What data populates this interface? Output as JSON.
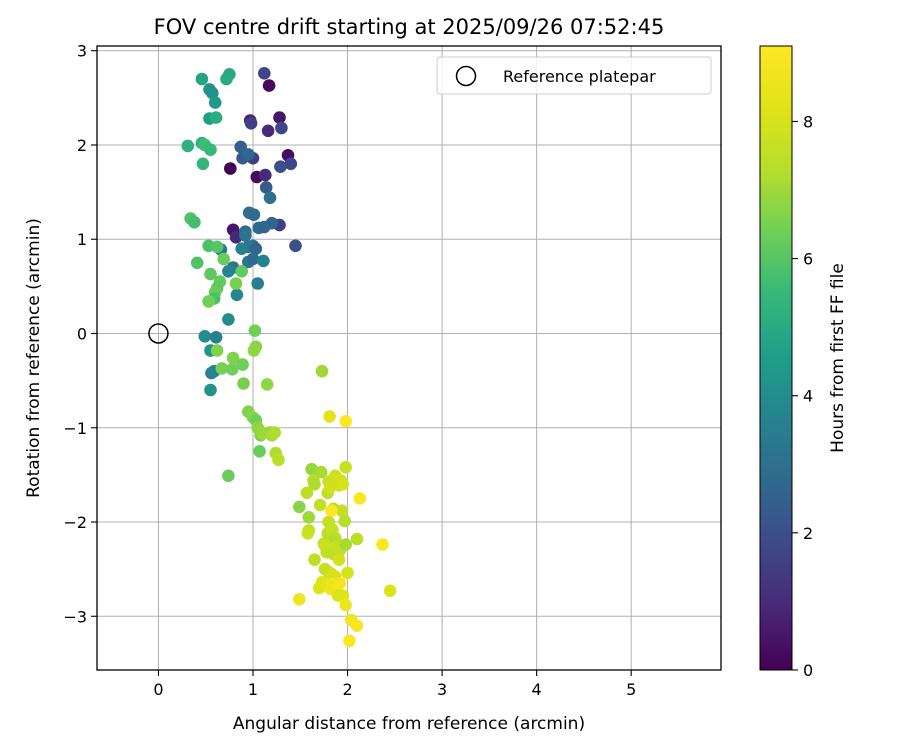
{
  "chart_data": {
    "type": "scatter",
    "title": "FOV centre drift starting at 2025/09/26 07:52:45",
    "xlabel": "Angular distance from reference (arcmin)",
    "ylabel": "Rotation from reference (arcmin)",
    "xlim": [
      -0.65,
      5.95
    ],
    "ylim": [
      -3.57,
      3.05
    ],
    "xticks": [
      0,
      1,
      2,
      3,
      4,
      5
    ],
    "yticks": [
      -3,
      -2,
      -1,
      0,
      1,
      2,
      3
    ],
    "xtick_labels": [
      "0",
      "1",
      "2",
      "3",
      "4",
      "5"
    ],
    "ytick_labels": [
      "−3",
      "−2",
      "−1",
      "0",
      "1",
      "2",
      "3"
    ],
    "grid": true,
    "legend": {
      "position": "top-right",
      "entries": [
        "Reference platepar"
      ]
    },
    "reference_point": {
      "label": "Reference platepar",
      "x": 0,
      "y": 0
    },
    "colorbar": {
      "label": "Hours from first FF file",
      "colormap": "viridis",
      "range": [
        0,
        9.1
      ],
      "ticks": [
        0,
        2,
        4,
        6,
        8
      ],
      "tick_labels": [
        "0",
        "2",
        "4",
        "6",
        "8"
      ]
    },
    "series": [
      {
        "points": [
          [
            1.17,
            2.63,
            0.2
          ],
          [
            1.28,
            2.29,
            0.5
          ],
          [
            0.97,
            2.26,
            0.8
          ],
          [
            1.16,
            2.15,
            1.0
          ],
          [
            1.37,
            1.89,
            0.3
          ],
          [
            0.76,
            1.75,
            0.1
          ],
          [
            1.04,
            1.66,
            0.2
          ],
          [
            1.13,
            1.68,
            1.0
          ],
          [
            0.79,
            1.1,
            0.5
          ],
          [
            0.82,
            1.02,
            0.9
          ],
          [
            1.12,
            2.76,
            1.7
          ],
          [
            0.98,
            2.23,
            1.6
          ],
          [
            1.3,
            2.18,
            1.8
          ],
          [
            1.4,
            1.8,
            1.8
          ],
          [
            1.29,
            1.77,
            2.0
          ],
          [
            1.0,
            1.86,
            1.5
          ],
          [
            1.14,
            1.55,
            2.3
          ],
          [
            1.18,
            1.44,
            3.0
          ],
          [
            1.45,
            0.93,
            2.0
          ],
          [
            1.28,
            1.15,
            1.6
          ],
          [
            1.2,
            1.17,
            2.6
          ],
          [
            1.06,
            1.12,
            2.8
          ],
          [
            1.12,
            1.13,
            2.7
          ],
          [
            0.96,
            1.28,
            3.0
          ],
          [
            1.01,
            1.26,
            2.8
          ],
          [
            0.87,
            1.98,
            2.5
          ],
          [
            0.89,
            1.86,
            2.3
          ],
          [
            0.95,
            1.9,
            2.7
          ],
          [
            0.92,
            1.08,
            2.9
          ],
          [
            0.92,
            1.04,
            3.1
          ],
          [
            1.0,
            0.93,
            3.0
          ],
          [
            0.95,
            0.92,
            3.2
          ],
          [
            1.03,
            0.9,
            2.6
          ],
          [
            0.88,
            0.9,
            3.6
          ],
          [
            0.95,
            0.76,
            3.2
          ],
          [
            1.0,
            0.79,
            2.8
          ],
          [
            1.11,
            0.77,
            3.6
          ],
          [
            1.05,
            0.53,
            3.5
          ],
          [
            0.79,
            0.7,
            3.2
          ],
          [
            0.74,
            0.66,
            3.7
          ],
          [
            0.66,
            0.89,
            3.3
          ],
          [
            0.83,
            0.41,
            3.8
          ],
          [
            0.74,
            0.15,
            4.0
          ],
          [
            0.49,
            -0.03,
            4.0
          ],
          [
            0.61,
            -0.04,
            3.6
          ],
          [
            0.55,
            -0.18,
            4.2
          ],
          [
            0.59,
            -0.4,
            3.9
          ],
          [
            0.56,
            -0.42,
            3.7
          ],
          [
            0.55,
            -0.6,
            4.2
          ],
          [
            0.75,
            2.75,
            4.9
          ],
          [
            0.72,
            2.7,
            5.0
          ],
          [
            0.46,
            2.7,
            4.8
          ],
          [
            0.54,
            2.59,
            4.2
          ],
          [
            0.57,
            2.55,
            4.1
          ],
          [
            0.6,
            2.45,
            4.4
          ],
          [
            0.54,
            2.28,
            4.6
          ],
          [
            0.61,
            2.29,
            5.1
          ],
          [
            0.31,
            1.99,
            5.2
          ],
          [
            0.46,
            2.02,
            5.3
          ],
          [
            0.49,
            2.0,
            5.6
          ],
          [
            0.55,
            1.95,
            5.5
          ],
          [
            0.47,
            1.8,
            5.4
          ],
          [
            0.34,
            1.22,
            5.9
          ],
          [
            0.38,
            1.18,
            5.7
          ],
          [
            0.53,
            0.93,
            5.8
          ],
          [
            0.62,
            0.92,
            6.0
          ],
          [
            0.41,
            0.75,
            5.9
          ],
          [
            0.55,
            0.63,
            6.1
          ],
          [
            0.69,
            0.79,
            6.3
          ],
          [
            0.65,
            0.55,
            6.2
          ],
          [
            0.62,
            0.48,
            6.1
          ],
          [
            0.6,
            0.44,
            6.3
          ],
          [
            0.59,
            0.37,
            5.8
          ],
          [
            0.53,
            0.34,
            6.4
          ],
          [
            0.82,
            0.53,
            6.5
          ],
          [
            0.88,
            0.66,
            6.2
          ],
          [
            1.02,
            0.03,
            6.4
          ],
          [
            1.03,
            -0.14,
            6.7
          ],
          [
            1.01,
            -0.18,
            6.8
          ],
          [
            0.62,
            -0.18,
            6.6
          ],
          [
            0.79,
            -0.26,
            6.6
          ],
          [
            0.67,
            -0.37,
            6.5
          ],
          [
            0.78,
            -0.38,
            6.4
          ],
          [
            0.89,
            -0.33,
            6.4
          ],
          [
            0.9,
            -0.53,
            6.5
          ],
          [
            0.95,
            -0.83,
            6.6
          ],
          [
            1.0,
            -0.89,
            6.7
          ],
          [
            1.03,
            -0.92,
            6.4
          ],
          [
            1.05,
            -1.0,
            6.8
          ],
          [
            1.08,
            -1.08,
            6.6
          ],
          [
            1.1,
            -1.06,
            7.0
          ],
          [
            1.18,
            -1.05,
            6.9
          ],
          [
            1.2,
            -1.08,
            7.1
          ],
          [
            1.23,
            -1.05,
            7.2
          ],
          [
            1.07,
            -1.25,
            6.3
          ],
          [
            1.24,
            -1.27,
            7.2
          ],
          [
            1.27,
            -1.34,
            7.3
          ],
          [
            0.74,
            -1.51,
            6.3
          ],
          [
            1.15,
            -0.54,
            6.8
          ],
          [
            1.73,
            -0.4,
            7.0
          ],
          [
            1.62,
            -1.44,
            6.9
          ],
          [
            1.64,
            -1.56,
            7.3
          ],
          [
            1.65,
            -1.6,
            7.2
          ],
          [
            1.72,
            -1.47,
            7.1
          ],
          [
            1.57,
            -1.69,
            7.5
          ],
          [
            1.49,
            -1.84,
            6.7
          ],
          [
            1.59,
            -1.95,
            7.0
          ],
          [
            1.59,
            -2.09,
            7.4
          ],
          [
            1.58,
            -2.12,
            7.8
          ],
          [
            1.71,
            -1.82,
            7.6
          ],
          [
            1.79,
            -1.69,
            7.5
          ],
          [
            1.8,
            -1.57,
            7.7
          ],
          [
            1.87,
            -1.51,
            7.8
          ],
          [
            1.82,
            -1.63,
            7.9
          ],
          [
            1.91,
            -1.61,
            7.8
          ],
          [
            1.93,
            -1.56,
            7.9
          ],
          [
            1.95,
            -1.6,
            8.0
          ],
          [
            1.98,
            -1.42,
            7.7
          ],
          [
            1.94,
            -1.88,
            7.6
          ],
          [
            1.97,
            -1.99,
            7.3
          ],
          [
            1.85,
            -1.86,
            7.4
          ],
          [
            1.8,
            -2.0,
            7.6
          ],
          [
            1.79,
            -2.12,
            7.4
          ],
          [
            1.84,
            -2.08,
            7.7
          ],
          [
            1.87,
            -2.17,
            7.5
          ],
          [
            1.84,
            -2.2,
            7.2
          ],
          [
            1.75,
            -2.23,
            7.4
          ],
          [
            1.76,
            -2.25,
            7.8
          ],
          [
            1.78,
            -2.32,
            7.6
          ],
          [
            1.85,
            -2.34,
            7.5
          ],
          [
            1.88,
            -2.26,
            7.7
          ],
          [
            1.92,
            -2.3,
            7.6
          ],
          [
            1.98,
            -2.24,
            7.1
          ],
          [
            2.1,
            -2.18,
            7.4
          ],
          [
            1.65,
            -2.4,
            7.5
          ],
          [
            1.76,
            -2.5,
            7.7
          ],
          [
            1.8,
            -2.53,
            7.6
          ],
          [
            1.83,
            -2.55,
            7.9
          ],
          [
            1.87,
            -2.58,
            8.0
          ],
          [
            1.73,
            -2.64,
            8.2
          ],
          [
            1.7,
            -2.7,
            8.1
          ],
          [
            1.78,
            -2.67,
            8.4
          ],
          [
            1.82,
            -2.71,
            8.6
          ],
          [
            1.84,
            -2.66,
            8.8
          ],
          [
            1.86,
            -2.69,
            8.5
          ],
          [
            1.89,
            -2.72,
            8.7
          ],
          [
            1.92,
            -2.65,
            8.9
          ],
          [
            1.95,
            -2.78,
            8.3
          ],
          [
            1.9,
            -2.78,
            8.1
          ],
          [
            1.98,
            -2.88,
            8.6
          ],
          [
            2.04,
            -3.04,
            8.7
          ],
          [
            2.1,
            -3.1,
            8.9
          ],
          [
            2.02,
            -3.26,
            9.0
          ],
          [
            1.49,
            -2.82,
            8.7
          ],
          [
            2.45,
            -2.73,
            8.1
          ],
          [
            1.81,
            -0.88,
            8.3
          ],
          [
            1.98,
            -0.93,
            9.1
          ],
          [
            2.13,
            -1.75,
            9.0
          ],
          [
            1.83,
            -1.88,
            9.0
          ],
          [
            2.37,
            -2.24,
            9.0
          ],
          [
            2.0,
            -2.54,
            8.0
          ],
          [
            1.91,
            -2.4,
            7.9
          ]
        ]
      }
    ]
  }
}
